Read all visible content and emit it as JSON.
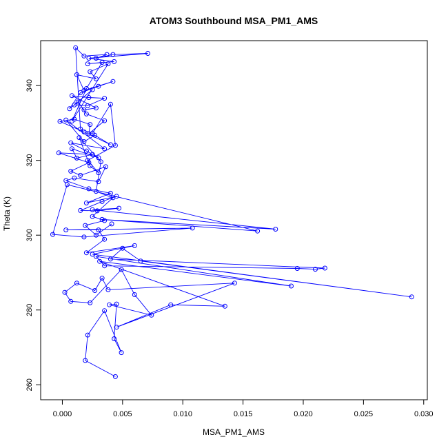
{
  "chart_data": {
    "type": "line",
    "title": "ATOM3 Southbound MSA_PM1_AMS",
    "xlabel": "MSA_PM1_AMS",
    "ylabel": "Theta (K)",
    "xlim": [
      -0.0018,
      0.0303
    ],
    "ylim": [
      256,
      352
    ],
    "x_ticks": [
      0.0,
      0.005,
      0.01,
      0.015,
      0.02,
      0.025,
      0.03
    ],
    "x_tick_labels": [
      "0.000",
      "0.005",
      "0.010",
      "0.015",
      "0.020",
      "0.025",
      "0.030"
    ],
    "y_ticks": [
      260,
      280,
      300,
      320,
      340
    ],
    "y_tick_labels": [
      "260",
      "280",
      "300",
      "320",
      "340"
    ],
    "grid": false,
    "legend": "none",
    "series": [
      {
        "color": "#0000ff",
        "marker": "open-circle",
        "x": [
          0.0044,
          0.0019,
          0.0021,
          0.0035,
          0.0049,
          0.0043,
          0.0045,
          0.0039,
          0.0074,
          0.006,
          0.0049,
          0.0023,
          0.0007,
          0.0002,
          0.0012,
          0.0027,
          0.0033,
          0.0038,
          0.0143,
          0.0045,
          0.009,
          0.0135,
          0.0031,
          0.019,
          0.0028,
          0.0035,
          0.0195,
          0.021,
          0.0218,
          0.004,
          0.005,
          0.0065,
          0.029,
          0.0025,
          0.006,
          0.002,
          0.0035,
          0.003,
          0.0003,
          0.0108,
          0.0018,
          -0.0008,
          0.0004,
          0.0162,
          0.0033,
          0.0177,
          0.0025,
          0.0047,
          0.0029,
          0.0015,
          0.0033,
          0.0045,
          0.002,
          0.004,
          0.0022,
          0.0003,
          0.001,
          0.003,
          0.0036,
          0.0015,
          0.0007,
          0.0022,
          -0.0003,
          0.0025,
          0.0012,
          0.0008,
          0.003,
          0.002,
          0.0007,
          0.0035,
          0.0003,
          0.0018,
          0.0027,
          0.004,
          0.0018,
          -0.0002,
          0.001,
          0.0023,
          0.0022,
          0.0035,
          0.002,
          0.0013,
          0.0018,
          0.0028,
          0.0008,
          0.0022,
          0.0035,
          0.0021,
          0.001,
          0.0025,
          0.0006,
          0.0015,
          0.003,
          0.0042,
          0.0018,
          0.0012,
          0.0028,
          0.0023,
          0.0038,
          0.0008,
          0.002,
          0.0033,
          0.0021,
          0.0043,
          0.0022,
          0.0071,
          0.0042,
          0.0028,
          0.0037,
          0.0018,
          0.0011,
          0.0015,
          0.0025,
          0.004,
          0.0044,
          0.0021,
          0.003,
          0.0023,
          0.0014,
          0.0032,
          0.0028,
          0.0042,
          0.0025,
          0.0035,
          0.0019,
          0.0028,
          0.0041
        ],
        "y": [
          262.2,
          266.5,
          273.3,
          279.8,
          268.6,
          272.3,
          281.6,
          281.4,
          278.6,
          284.1,
          290.8,
          281.9,
          282.3,
          284.7,
          287.2,
          285.2,
          288.5,
          285.4,
          287.2,
          275.4,
          281.4,
          281.0,
          293.0,
          286.4,
          294.3,
          291.8,
          291.1,
          290.9,
          291.2,
          293.6,
          296.5,
          293.1,
          283.5,
          294.9,
          297.2,
          295.3,
          298.9,
          301.4,
          301.4,
          301.9,
          299.5,
          300.2,
          313.5,
          301.1,
          304.2,
          301.6,
          306.8,
          307.2,
          306.5,
          306.6,
          309.0,
          310.4,
          308.6,
          311.2,
          312.4,
          314.6,
          315.3,
          314.3,
          318.3,
          316.0,
          317.1,
          319.4,
          322.0,
          321.6,
          320.6,
          323.1,
          320.7,
          322.5,
          324.7,
          323.1,
          330.8,
          325.0,
          326.7,
          324.2,
          327.6,
          330.4,
          331.0,
          329.6,
          327.1,
          330.6,
          332.4,
          335.6,
          333.5,
          334.0,
          337.3,
          336.8,
          336.6,
          334.6,
          334.8,
          338.9,
          333.8,
          338.1,
          339.8,
          341.1,
          338.7,
          342.9,
          341.8,
          343.7,
          345.8,
          330.5,
          339.2,
          346.2,
          345.8,
          346.4,
          347.3,
          348.6,
          348.3,
          347.3,
          348.3,
          347.9,
          350.1,
          328.4,
          327.2,
          335.0,
          324.0,
          320.0,
          316.7,
          318.5,
          326.1,
          319.6,
          311.7,
          310.0,
          305.0,
          303.9,
          302.6,
          300.0,
          303.0
        ]
      }
    ]
  }
}
